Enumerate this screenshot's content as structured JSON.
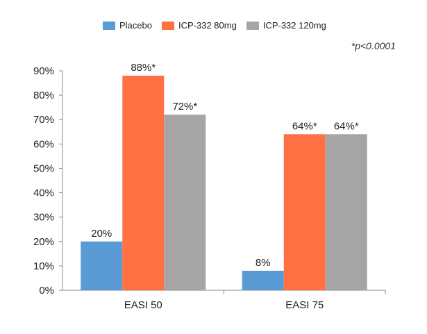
{
  "chart_data": {
    "type": "bar",
    "categories": [
      "EASI 50",
      "EASI 75"
    ],
    "series": [
      {
        "name": "Placebo",
        "color": "#5B9BD5",
        "values": [
          20,
          8
        ],
        "labels": [
          "20%",
          "8%"
        ]
      },
      {
        "name": "ICP-332 80mg",
        "color": "#FF7043",
        "values": [
          88,
          64
        ],
        "labels": [
          "88%*",
          "64%*"
        ]
      },
      {
        "name": "ICP-332 120mg",
        "color": "#A5A5A5",
        "values": [
          72,
          64
        ],
        "labels": [
          "72%*",
          "64%*"
        ]
      }
    ],
    "ylim": [
      0,
      90
    ],
    "yticks": [
      "0%",
      "10%",
      "20%",
      "30%",
      "40%",
      "50%",
      "60%",
      "70%",
      "80%",
      "90%"
    ],
    "annotation": "*p<0.0001",
    "legend_position": "top",
    "grid": false
  }
}
